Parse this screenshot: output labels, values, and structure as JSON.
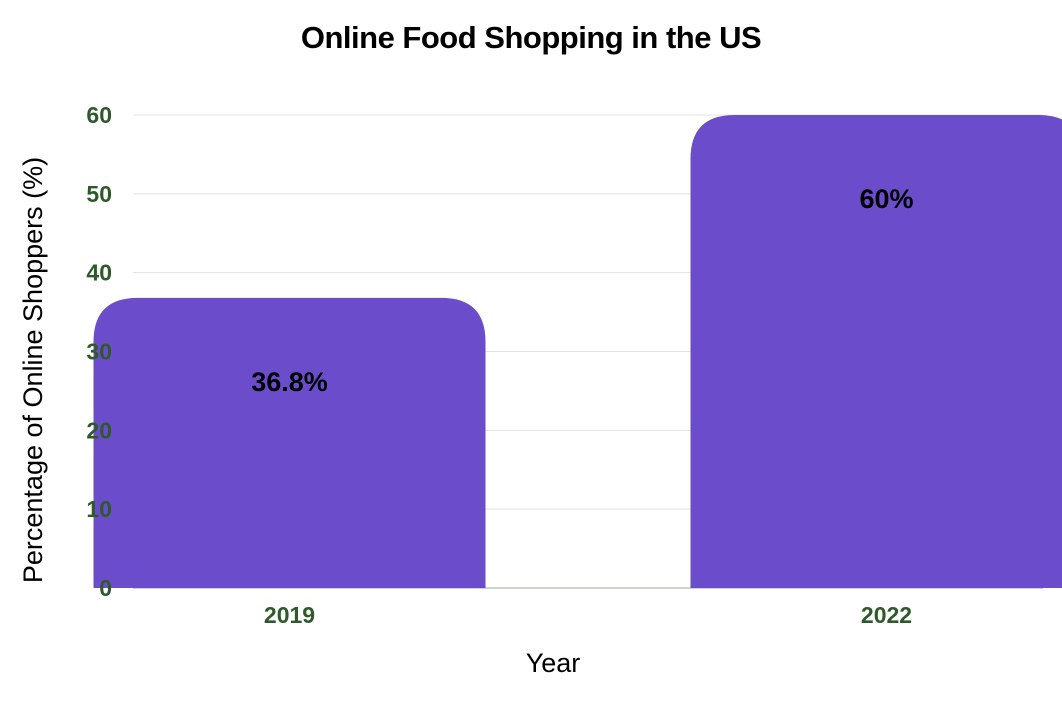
{
  "chart_data": {
    "type": "bar",
    "title": "Online Food Shopping in the US",
    "xlabel": "Year",
    "ylabel": "Percentage of Online Shoppers (%)",
    "categories": [
      "2019",
      "2022"
    ],
    "values": [
      36.8,
      60
    ],
    "data_labels": [
      "36.8%",
      "60%"
    ],
    "ylim": [
      0,
      60
    ],
    "yticks": [
      0,
      10,
      20,
      30,
      40,
      50,
      60
    ],
    "ytick_labels": [
      "0",
      "10",
      "20",
      "30",
      "40",
      "50",
      "60"
    ],
    "grid": true,
    "legend": "none"
  },
  "colors": {
    "bar": "#6b4dcc",
    "tick_label": "#2e5a2a",
    "grid": "#e3e3e3",
    "baseline": "#9aa59a"
  }
}
